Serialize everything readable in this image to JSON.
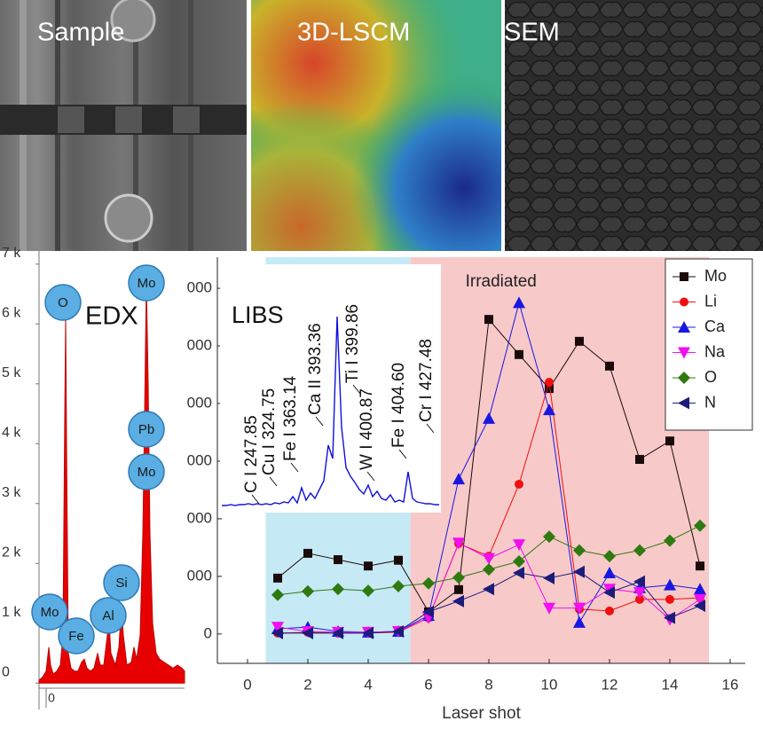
{
  "images": [
    {
      "label": "Sample"
    },
    {
      "label": "3D-LSCM"
    },
    {
      "label": "SEM"
    }
  ],
  "edx_labels": [
    "O",
    "Mo",
    "Pb",
    "Mo",
    "Si",
    "Al",
    "Fe",
    "Mo"
  ],
  "chart_data": [
    {
      "type": "line",
      "xlabel": "Laser shot",
      "x": [
        1,
        2,
        3,
        4,
        5,
        6,
        7,
        8,
        9,
        10,
        11,
        12,
        13,
        14,
        15
      ],
      "xlim": [
        -1,
        16.5
      ],
      "xticks": [
        0,
        2,
        4,
        6,
        8,
        10,
        12,
        14,
        16
      ],
      "ylim": [
        -510,
        6540
      ],
      "yticks": [
        {
          "value": 0,
          "label": "0"
        },
        {
          "value": 1000,
          "label": "000"
        },
        {
          "value": 2000,
          "label": "000"
        },
        {
          "value": 3000,
          "label": "000"
        },
        {
          "value": 4000,
          "label": "000"
        },
        {
          "value": 5000,
          "label": "000"
        },
        {
          "value": 6000,
          "label": "000"
        }
      ],
      "regions": [
        {
          "x0": 0.6,
          "x1": 5.4,
          "color": "#c6e9f6"
        },
        {
          "label": "Irradiated",
          "x0": 5.4,
          "x1": 15.3,
          "color": "#f8c9c9"
        }
      ],
      "legend": "upper right",
      "series": [
        {
          "name": "Mo",
          "color": "#1a0a0a",
          "marker": "square",
          "values": [
            970,
            1400,
            1290,
            1180,
            1280,
            385,
            770,
            5460,
            4850,
            4260,
            5080,
            4650,
            3030,
            3350,
            1180
          ]
        },
        {
          "name": "Li",
          "color": "#f01010",
          "marker": "circle",
          "values": [
            15,
            30,
            15,
            15,
            30,
            280,
            1570,
            1350,
            2600,
            4370,
            430,
            400,
            600,
            600,
            630
          ]
        },
        {
          "name": "Ca",
          "color": "#1818e0",
          "marker": "triangle-up",
          "values": [
            90,
            120,
            45,
            30,
            45,
            320,
            2690,
            3740,
            5750,
            3890,
            200,
            1060,
            800,
            850,
            780
          ]
        },
        {
          "name": "Na",
          "color": "#f010f0",
          "marker": "triangle-down",
          "values": [
            120,
            45,
            30,
            30,
            45,
            280,
            1580,
            1310,
            1550,
            450,
            450,
            780,
            720,
            250,
            600
          ]
        },
        {
          "name": "O",
          "color": "#2f7a10",
          "marker": "diamond",
          "values": [
            680,
            740,
            780,
            750,
            830,
            880,
            980,
            1120,
            1260,
            1690,
            1450,
            1350,
            1450,
            1620,
            1880
          ]
        },
        {
          "name": "N",
          "color": "#1c1c7a",
          "marker": "triangle-left",
          "values": [
            15,
            15,
            15,
            15,
            45,
            385,
            570,
            780,
            1060,
            970,
            1080,
            720,
            910,
            280,
            490
          ]
        }
      ]
    },
    {
      "type": "line",
      "title": "LIBS",
      "color": "#1010e0",
      "values": [
        2,
        2,
        3,
        2,
        3,
        3,
        4,
        3,
        4,
        3,
        4,
        3,
        5,
        4,
        6,
        5,
        12,
        5,
        22,
        8,
        16,
        10,
        20,
        30,
        70,
        55,
        215,
        90,
        45,
        35,
        28,
        20,
        15,
        25,
        12,
        18,
        10,
        8,
        14,
        6,
        8,
        6,
        40,
        10,
        6,
        5,
        4,
        4,
        3,
        3
      ],
      "annotations": [
        "C I 247.85",
        "Cu I 324.75",
        "Fe I 363.14",
        "Ca II 393.36",
        "Ti I 399.86",
        "W I 400.87",
        "Fe I 404.60",
        "Cr I 427.48"
      ]
    },
    {
      "type": "area",
      "title": "EDX",
      "color": "#e60000",
      "x": [
        -0.14,
        -0.1,
        -0.06,
        -0.03,
        -0.01,
        0.02,
        0.06,
        0.1,
        0.13,
        0.15,
        0.16,
        0.17,
        0.19,
        0.22,
        0.26,
        0.3,
        0.34,
        0.37,
        0.4,
        0.44,
        0.48,
        0.52,
        0.55,
        0.59,
        0.63,
        0.65,
        0.67,
        0.72,
        0.76,
        0.79,
        0.81,
        0.85,
        0.9,
        0.93,
        0.96,
        1.0,
        1.03,
        1.05,
        1.07,
        1.09,
        1.11,
        1.14,
        1.18,
        1.22,
        1.27,
        1.32,
        1.37,
        1.42,
        1.47,
        1.5
      ],
      "values": [
        50,
        100,
        200,
        600,
        300,
        150,
        200,
        300,
        800,
        4500,
        6100,
        4000,
        500,
        250,
        200,
        200,
        350,
        400,
        250,
        200,
        250,
        500,
        300,
        300,
        800,
        1000,
        500,
        300,
        600,
        1300,
        800,
        300,
        350,
        600,
        400,
        800,
        2500,
        4500,
        6700,
        5000,
        2500,
        1000,
        500,
        400,
        350,
        300,
        250,
        300,
        250,
        200
      ],
      "xlim": [
        -0.14,
        1.5
      ],
      "xticks": [
        0
      ],
      "ylim": [
        -130,
        7220
      ],
      "yticks": [
        {
          "value": 0,
          "label": "0"
        },
        {
          "value": 1000,
          "label": "1 k"
        },
        {
          "value": 2000,
          "label": "2 k"
        },
        {
          "value": 3000,
          "label": "3 k"
        },
        {
          "value": 4000,
          "label": "4 k"
        },
        {
          "value": 5000,
          "label": "5 k"
        },
        {
          "value": 6000,
          "label": "6 k"
        },
        {
          "value": 7000,
          "label": "7 k"
        }
      ]
    }
  ]
}
